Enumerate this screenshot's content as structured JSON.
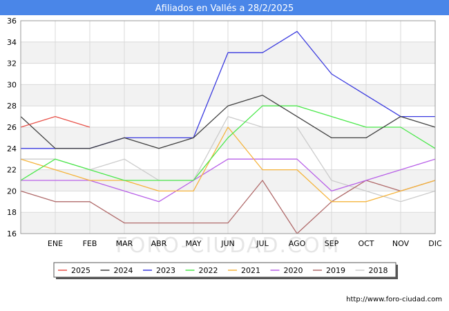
{
  "chart_data": {
    "type": "line",
    "title": "Afiliados en Vallés a 28/2/2025",
    "categories": [
      "",
      "ENE",
      "FEB",
      "MAR",
      "ABR",
      "MAY",
      "JUN",
      "JUL",
      "AGO",
      "SEP",
      "OCT",
      "NOV",
      "DIC"
    ],
    "ylim": [
      16,
      36
    ],
    "yticks": [
      16,
      18,
      20,
      22,
      24,
      26,
      28,
      30,
      32,
      34,
      36
    ],
    "grid": true,
    "legend_position": "bottom",
    "series": [
      {
        "name": "2025",
        "color": "#e8524a",
        "values": [
          26,
          27,
          26,
          null,
          null,
          null,
          null,
          null,
          null,
          null,
          null,
          null,
          null
        ]
      },
      {
        "name": "2024",
        "color": "#404040",
        "values": [
          27,
          24,
          24,
          25,
          24,
          25,
          28,
          29,
          27,
          25,
          25,
          27,
          26
        ]
      },
      {
        "name": "2023",
        "color": "#3a3adf",
        "values": [
          24,
          24,
          24,
          25,
          25,
          25,
          33,
          33,
          35,
          31,
          29,
          27,
          27
        ]
      },
      {
        "name": "2022",
        "color": "#4ae84a",
        "values": [
          21,
          23,
          22,
          21,
          21,
          21,
          25,
          28,
          28,
          27,
          26,
          26,
          24
        ]
      },
      {
        "name": "2021",
        "color": "#f5b43c",
        "values": [
          23,
          22,
          21,
          21,
          20,
          20,
          26,
          22,
          22,
          19,
          19,
          20,
          21
        ]
      },
      {
        "name": "2020",
        "color": "#b860e8",
        "values": [
          21,
          21,
          21,
          20,
          19,
          21,
          23,
          23,
          23,
          20,
          21,
          22,
          23
        ]
      },
      {
        "name": "2019",
        "color": "#b06a6a",
        "values": [
          20,
          19,
          19,
          17,
          17,
          17,
          17,
          21,
          16,
          19,
          21,
          20,
          21
        ]
      },
      {
        "name": "2018",
        "color": "#cccccc",
        "values": [
          23,
          23,
          22,
          23,
          21,
          21,
          27,
          26,
          26,
          21,
          20,
          19,
          20
        ]
      }
    ]
  },
  "watermark": "FORO-CIUDAD.COM",
  "credit": "http://www.foro-ciudad.com"
}
